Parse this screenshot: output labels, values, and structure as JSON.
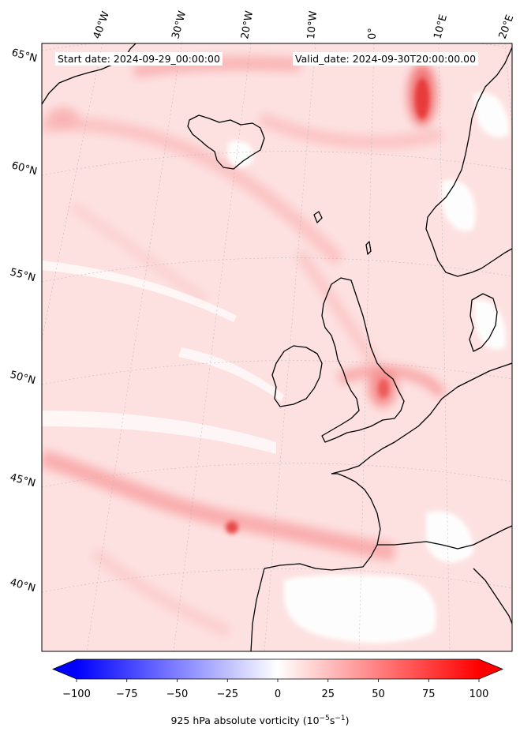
{
  "header": {
    "start_date": "Start date: 2024-09-29_00:00:00",
    "valid_date": "Valid_date: 2024-09-30T20:00:00.00"
  },
  "map": {
    "lon_labels": [
      "40°W",
      "30°W",
      "20°W",
      "10°W",
      "0°",
      "10°E",
      "20°E"
    ],
    "lat_labels": [
      "65°N",
      "60°N",
      "55°N",
      "50°N",
      "45°N",
      "40°N"
    ],
    "colors": {
      "coast": "#000000",
      "positive": "#ff0000",
      "negative": "#0000ff",
      "neutral": "#ffffff"
    }
  },
  "colorbar": {
    "title_text": "925 hPa absolute vorticity (10",
    "title_exp1": "−5",
    "title_mid": "s",
    "title_exp2": "−1",
    "title_end": ")",
    "min": -100,
    "max": 100,
    "levels": 40,
    "extend": "both",
    "ticks": [
      "−100",
      "−75",
      "−50",
      "−25",
      "0",
      "25",
      "50",
      "75",
      "100"
    ]
  }
}
